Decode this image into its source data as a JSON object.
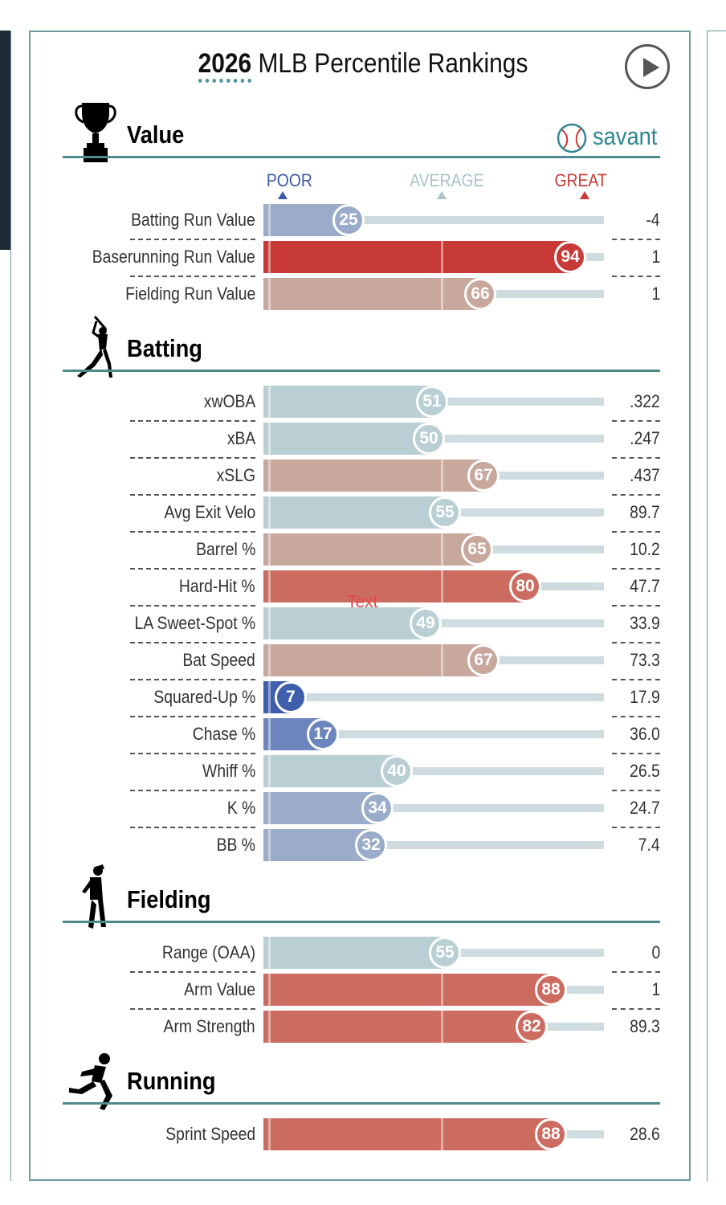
{
  "header": {
    "year": "2026",
    "title_rest": "MLB Percentile Rankings",
    "brand": "savant"
  },
  "scale": {
    "poor": "POOR",
    "average": "AVERAGE",
    "great": "GREAT"
  },
  "colors": {
    "poor_dark": "#3f5fad",
    "poor_mid": "#6d85bd",
    "poor_light": "#9aacc9",
    "avg": "#b9cfd4",
    "great_light": "#c8a79d",
    "great_mid": "#cc6c60",
    "great_dark": "#c83a37",
    "accent": "#4f8a8f"
  },
  "overlay_text": "Text",
  "sections": [
    {
      "title": "Value",
      "icon": "trophy-icon",
      "rows": [
        {
          "label": "Batting Run Value",
          "pct": 25,
          "value": "-4"
        },
        {
          "label": "Baserunning Run Value",
          "pct": 94,
          "value": "1"
        },
        {
          "label": "Fielding Run Value",
          "pct": 66,
          "value": "1"
        }
      ]
    },
    {
      "title": "Batting",
      "icon": "batter-icon",
      "rows": [
        {
          "label": "xwOBA",
          "pct": 51,
          "value": ".322"
        },
        {
          "label": "xBA",
          "pct": 50,
          "value": ".247"
        },
        {
          "label": "xSLG",
          "pct": 67,
          "value": ".437"
        },
        {
          "label": "Avg Exit Velo",
          "pct": 55,
          "value": "89.7"
        },
        {
          "label": "Barrel %",
          "pct": 65,
          "value": "10.2"
        },
        {
          "label": "Hard-Hit %",
          "pct": 80,
          "value": "47.7"
        },
        {
          "label": "LA Sweet-Spot %",
          "pct": 49,
          "value": "33.9"
        },
        {
          "label": "Bat Speed",
          "pct": 67,
          "value": "73.3"
        },
        {
          "label": "Squared-Up %",
          "pct": 7,
          "value": "17.9"
        },
        {
          "label": "Chase %",
          "pct": 17,
          "value": "36.0"
        },
        {
          "label": "Whiff %",
          "pct": 40,
          "value": "26.5"
        },
        {
          "label": "K %",
          "pct": 34,
          "value": "24.7"
        },
        {
          "label": "BB %",
          "pct": 32,
          "value": "7.4"
        }
      ]
    },
    {
      "title": "Fielding",
      "icon": "fielder-icon",
      "rows": [
        {
          "label": "Range (OAA)",
          "pct": 55,
          "value": "0"
        },
        {
          "label": "Arm Value",
          "pct": 88,
          "value": "1"
        },
        {
          "label": "Arm Strength",
          "pct": 82,
          "value": "89.3"
        }
      ]
    },
    {
      "title": "Running",
      "icon": "runner-icon",
      "rows": [
        {
          "label": "Sprint Speed",
          "pct": 88,
          "value": "28.6"
        }
      ]
    }
  ]
}
